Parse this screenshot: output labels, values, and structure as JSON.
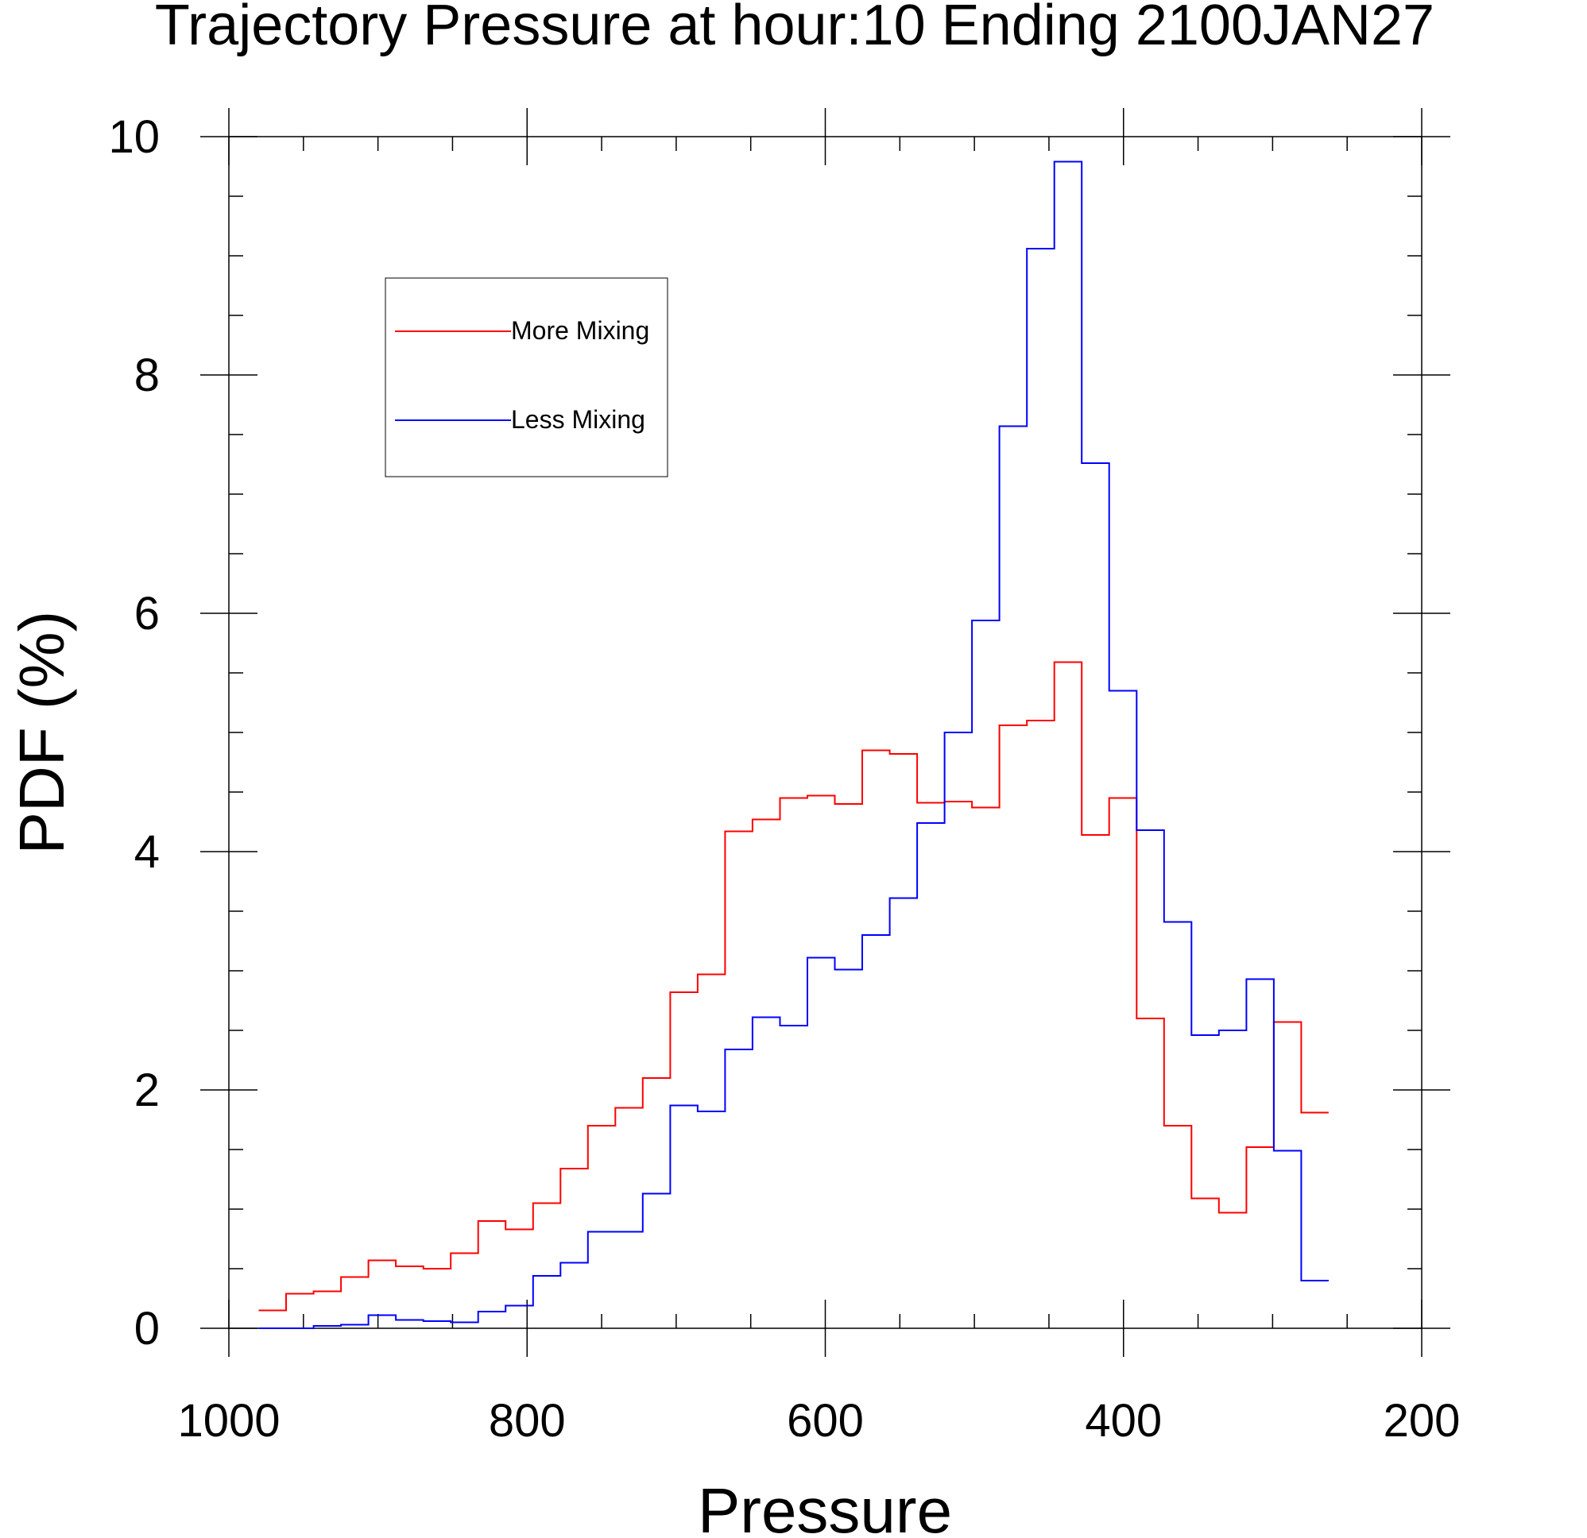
{
  "chart_data": {
    "type": "line",
    "title": "Trajectory Pressure at hour:10 Ending 2100JAN27",
    "xlabel": "Pressure",
    "ylabel": "PDF (%)",
    "xlim": [
      1000,
      200
    ],
    "ylim": [
      0,
      10
    ],
    "x_reversed": true,
    "x_ticks": [
      "1000",
      "800",
      "600",
      "400",
      "200"
    ],
    "y_ticks": [
      "0",
      "2",
      "4",
      "6",
      "8",
      "10"
    ],
    "x_tick_values": [
      1000,
      800,
      600,
      400,
      200
    ],
    "y_tick_values": [
      0,
      2,
      4,
      6,
      8,
      10
    ],
    "grid": false,
    "legend_placement": "top-left",
    "bin_edges": [
      980,
      961.6,
      943.2,
      924.8,
      906.4,
      888,
      869.6,
      851.2,
      832.8,
      814.4,
      796,
      777.6,
      759.2,
      740.8,
      722.4,
      704,
      685.6,
      667.2,
      648.8,
      630.4,
      612,
      593.6,
      575.2,
      556.8,
      538.4,
      520,
      501.6,
      483.2,
      464.8,
      446.4,
      428,
      409.6,
      391.2,
      372.8,
      354.4,
      336,
      317.6,
      299.2,
      280.8,
      262.4
    ],
    "series": [
      {
        "name": "More Mixing",
        "color": "#ff0000",
        "values": [
          0.15,
          0.29,
          0.31,
          0.43,
          0.57,
          0.52,
          0.5,
          0.63,
          0.9,
          0.83,
          1.05,
          1.34,
          1.7,
          1.85,
          2.1,
          2.82,
          2.97,
          4.17,
          4.27,
          4.45,
          4.47,
          4.4,
          4.85,
          4.82,
          4.41,
          4.42,
          4.37,
          5.06,
          5.1,
          5.59,
          4.14,
          4.45,
          2.6,
          1.7,
          1.09,
          0.97,
          1.52,
          2.57,
          1.81
        ]
      },
      {
        "name": "Less Mixing",
        "color": "#0000ff",
        "values": [
          0.0,
          0.0,
          0.02,
          0.03,
          0.11,
          0.07,
          0.06,
          0.05,
          0.14,
          0.19,
          0.44,
          0.55,
          0.81,
          0.81,
          1.13,
          1.87,
          1.82,
          2.34,
          2.61,
          2.54,
          3.11,
          3.01,
          3.3,
          3.61,
          4.24,
          5.0,
          5.94,
          7.57,
          9.06,
          9.79,
          7.26,
          5.35,
          4.18,
          3.41,
          2.46,
          2.5,
          2.93,
          1.49,
          0.4
        ]
      }
    ]
  }
}
